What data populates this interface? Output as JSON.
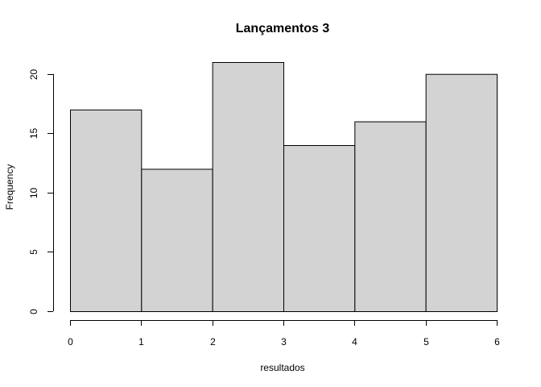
{
  "chart_data": {
    "type": "bar",
    "subtype": "histogram",
    "title": "Lançamentos 3",
    "xlabel": "resultados",
    "ylabel": "Frequency",
    "bins": [
      [
        0,
        1
      ],
      [
        1,
        2
      ],
      [
        2,
        3
      ],
      [
        3,
        4
      ],
      [
        4,
        5
      ],
      [
        5,
        6
      ]
    ],
    "values": [
      17,
      12,
      21,
      14,
      16,
      20
    ],
    "x_ticks": [
      0,
      1,
      2,
      3,
      4,
      5,
      6
    ],
    "y_ticks": [
      0,
      5,
      10,
      15,
      20
    ],
    "xlim": [
      0,
      6
    ],
    "ylim": [
      0,
      21
    ],
    "grid": false,
    "bar_color": "#d3d3d3",
    "edge_color": "#000000"
  }
}
